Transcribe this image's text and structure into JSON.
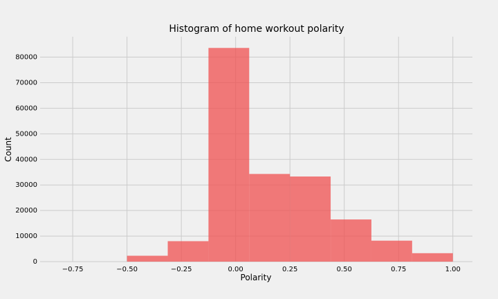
{
  "chart_data": {
    "type": "bar",
    "title": "Histogram of home workout polarity",
    "xlabel": "Polarity",
    "ylabel": "Count",
    "xlim": [
      -0.9,
      1.09
    ],
    "ylim": [
      0,
      88000
    ],
    "xticks": [
      -0.75,
      -0.5,
      -0.25,
      0.0,
      0.25,
      0.5,
      0.75,
      1.0
    ],
    "xtick_labels": [
      "−0.75",
      "−0.50",
      "−0.25",
      "0.00",
      "0.25",
      "0.50",
      "0.75",
      "1.00"
    ],
    "yticks": [
      0,
      10000,
      20000,
      30000,
      40000,
      50000,
      60000,
      70000,
      80000
    ],
    "ytick_labels": [
      "0",
      "10000",
      "20000",
      "30000",
      "40000",
      "50000",
      "60000",
      "70000",
      "80000"
    ],
    "grid": true,
    "color": "#f05050",
    "bins": [
      {
        "x0": -0.5,
        "x1": -0.3125,
        "count": 2300
      },
      {
        "x0": -0.3125,
        "x1": -0.125,
        "count": 8000
      },
      {
        "x0": -0.125,
        "x1": 0.0625,
        "count": 83600
      },
      {
        "x0": 0.0625,
        "x1": 0.25,
        "count": 34300
      },
      {
        "x0": 0.25,
        "x1": 0.4375,
        "count": 33300
      },
      {
        "x0": 0.4375,
        "x1": 0.625,
        "count": 16500
      },
      {
        "x0": 0.625,
        "x1": 0.8125,
        "count": 8200
      },
      {
        "x0": 0.8125,
        "x1": 1.0,
        "count": 3300
      }
    ]
  }
}
